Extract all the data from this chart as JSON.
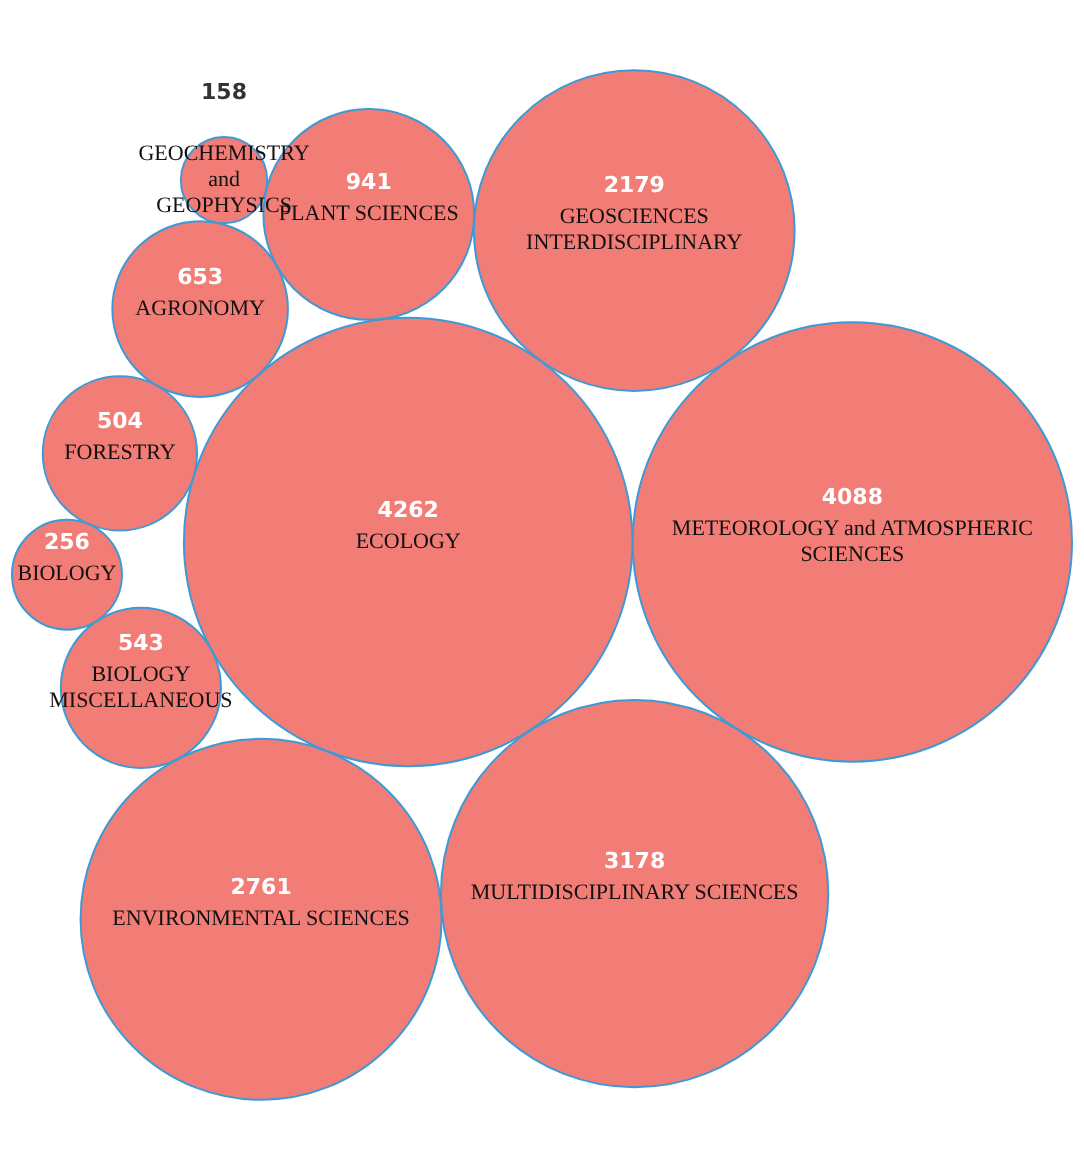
{
  "chart_data": {
    "type": "other",
    "categories": [
      "METEOROLOGY and ATMOSPHERIC SCIENCES",
      "ECOLOGY",
      "PLANT SCIENCES",
      "GEOCHEMISTRY and GEOPHYSICS",
      "MULTIDISCIPLINARY SCIENCES",
      "FORESTRY",
      "BIOLOGY MISCELLANEOUS",
      "BIOLOGY",
      "AGRONOMY",
      "ENVIRONMENTAL SCIENCES",
      "GEOSCIENCES INTERDISCIPLINARY"
    ],
    "values": [
      4088,
      4262,
      941,
      158,
      3178,
      504,
      543,
      256,
      653,
      2761,
      2179
    ],
    "color": "#f27c76",
    "data_labels": true
  }
}
